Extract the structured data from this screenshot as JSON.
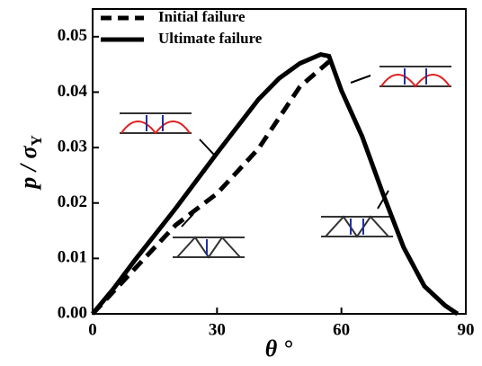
{
  "chart_data": {
    "type": "line",
    "x_label": "θ °",
    "y_label": "p / σ",
    "y_label_sub": "Y",
    "xlim": [
      0,
      90
    ],
    "xticks": [
      0,
      30,
      60,
      90
    ],
    "ylim": [
      0,
      0.055
    ],
    "yticks": [
      {
        "value": 0,
        "label": "0.00"
      },
      {
        "value": 0.01,
        "label": "0.01"
      },
      {
        "value": 0.02,
        "label": "0.02"
      },
      {
        "value": 0.03,
        "label": "0.03"
      },
      {
        "value": 0.04,
        "label": "0.04"
      },
      {
        "value": 0.05,
        "label": "0.05"
      }
    ],
    "legend": "upper left",
    "series": [
      {
        "name": "Initial failure",
        "color": "#000000",
        "dash": true,
        "x": [
          0,
          5,
          10,
          20,
          30,
          40,
          50,
          57
        ],
        "values": [
          0,
          0.004,
          0.008,
          0.016,
          0.0217,
          0.0298,
          0.041,
          0.0455
        ]
      },
      {
        "name": "Ultimate failure",
        "color": "#000000",
        "dash": false,
        "x": [
          0,
          5,
          10,
          20,
          30,
          40,
          45,
          50,
          55,
          57,
          60,
          65,
          70,
          75,
          80,
          85,
          88
        ],
        "values": [
          0,
          0.0045,
          0.0095,
          0.019,
          0.029,
          0.0387,
          0.0425,
          0.0452,
          0.0468,
          0.0465,
          0.0403,
          0.032,
          0.0217,
          0.012,
          0.005,
          0.0015,
          0
        ]
      }
    ]
  }
}
